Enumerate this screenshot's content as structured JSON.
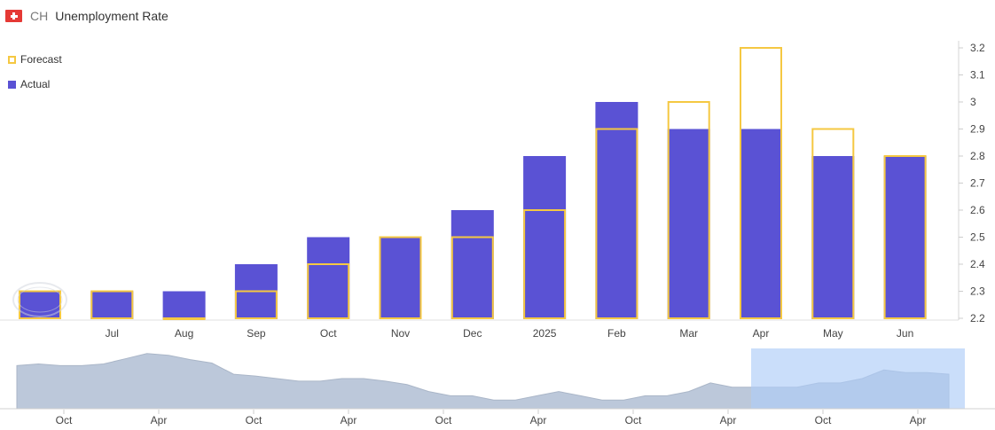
{
  "header": {
    "country_code": "CH",
    "title": "Unemployment Rate"
  },
  "legend": {
    "forecast": "Forecast",
    "actual": "Actual"
  },
  "colors": {
    "forecast": "#f5c842",
    "actual": "#5a52d4",
    "navigator_fill": "#bcc8da",
    "navigator_selection": "#aecdf7"
  },
  "chart_data": {
    "type": "bar",
    "categories": [
      "",
      "Jul",
      "Aug",
      "Sep",
      "Oct",
      "Nov",
      "Dec",
      "2025",
      "Feb",
      "Mar",
      "Apr",
      "May",
      "Jun"
    ],
    "series": [
      {
        "name": "Actual",
        "values": [
          2.3,
          2.3,
          2.3,
          2.4,
          2.5,
          2.5,
          2.6,
          2.8,
          3.0,
          2.9,
          2.9,
          2.8,
          2.8
        ]
      },
      {
        "name": "Forecast",
        "values": [
          2.3,
          2.3,
          2.2,
          2.3,
          2.4,
          2.5,
          2.5,
          2.6,
          2.9,
          3.0,
          3.2,
          2.9,
          2.8
        ]
      }
    ],
    "yticks": [
      "2.2",
      "2.3",
      "2.4",
      "2.5",
      "2.6",
      "2.7",
      "2.8",
      "2.9",
      "3",
      "3.1",
      "3.2"
    ],
    "ylim": [
      2.2,
      3.2
    ],
    "y_axis_side": "right",
    "legend_position": "top-left",
    "navigator": {
      "ticks": [
        "Oct",
        "Apr",
        "Oct",
        "Apr",
        "Oct",
        "Apr",
        "Oct",
        "Apr",
        "Oct",
        "Apr"
      ],
      "values": [
        2.7,
        2.72,
        2.7,
        2.7,
        2.72,
        2.78,
        2.84,
        2.82,
        2.77,
        2.73,
        2.6,
        2.58,
        2.55,
        2.52,
        2.52,
        2.55,
        2.55,
        2.52,
        2.48,
        2.4,
        2.35,
        2.35,
        2.3,
        2.3,
        2.35,
        2.4,
        2.35,
        2.3,
        2.3,
        2.35,
        2.35,
        2.4,
        2.5,
        2.45,
        2.45,
        2.45,
        2.45,
        2.5,
        2.5,
        2.55,
        2.65,
        2.62,
        2.62,
        2.6
      ]
    }
  }
}
